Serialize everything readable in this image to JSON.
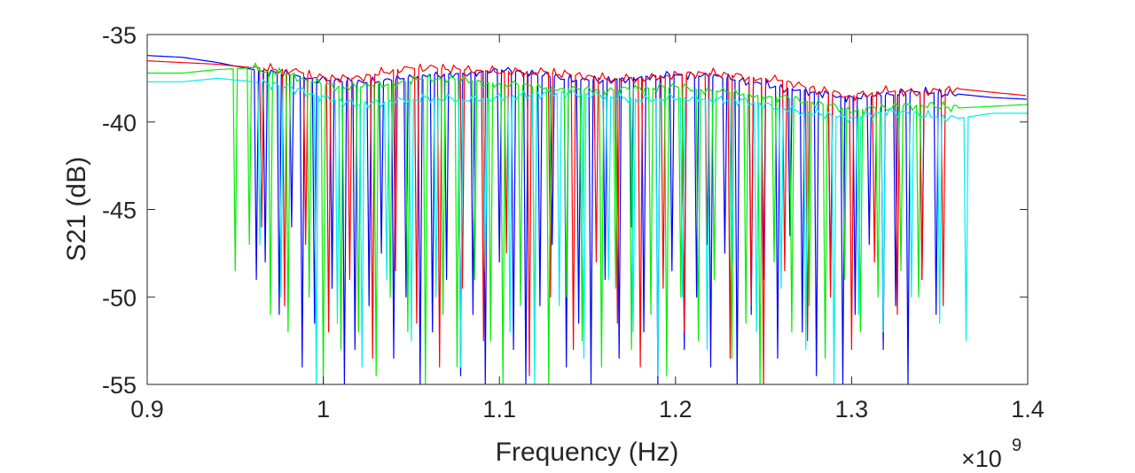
{
  "chart_data": {
    "type": "line",
    "title": "",
    "xlabel": "Frequency (Hz)",
    "ylabel": "S21 (dB)",
    "x_exponent_label": "×10",
    "x_exponent_power": "9",
    "xlim": [
      0.9,
      1.4
    ],
    "ylim": [
      -55,
      -35
    ],
    "x_ticks": [
      0.9,
      1.0,
      1.1,
      1.2,
      1.3,
      1.4
    ],
    "x_tick_labels": [
      "0.9",
      "1",
      "1.1",
      "1.2",
      "1.3",
      "1.4"
    ],
    "y_ticks": [
      -35,
      -40,
      -45,
      -50,
      -55
    ],
    "y_tick_labels": [
      "-35",
      "-40",
      "-45",
      "-50",
      "-55"
    ],
    "grid": false,
    "legend": "none",
    "series": [
      {
        "color": "#0000ff",
        "baseline": [
          [
            0.9,
            -36.2
          ],
          [
            0.92,
            -36.3
          ],
          [
            0.94,
            -36.6
          ],
          [
            0.96,
            -37.0
          ],
          [
            0.98,
            -37.3
          ],
          [
            1.0,
            -37.6
          ],
          [
            1.02,
            -37.8
          ],
          [
            1.04,
            -37.6
          ],
          [
            1.06,
            -37.3
          ],
          [
            1.08,
            -37.2
          ],
          [
            1.1,
            -37.0
          ],
          [
            1.12,
            -37.3
          ],
          [
            1.14,
            -37.6
          ],
          [
            1.16,
            -37.6
          ],
          [
            1.18,
            -37.4
          ],
          [
            1.2,
            -37.3
          ],
          [
            1.22,
            -37.4
          ],
          [
            1.24,
            -37.7
          ],
          [
            1.26,
            -38.0
          ],
          [
            1.28,
            -38.3
          ],
          [
            1.3,
            -38.6
          ],
          [
            1.32,
            -38.5
          ],
          [
            1.34,
            -38.3
          ],
          [
            1.36,
            -38.4
          ],
          [
            1.38,
            -38.6
          ],
          [
            1.4,
            -38.7
          ]
        ],
        "dips": [
          [
            0.962,
            -49.0
          ],
          [
            0.967,
            -48.0
          ],
          [
            0.975,
            -51.0
          ],
          [
            0.982,
            -46.0
          ],
          [
            0.988,
            -54.0
          ],
          [
            0.995,
            -51.5
          ],
          [
            1.005,
            -49.5
          ],
          [
            1.012,
            -55.0
          ],
          [
            1.018,
            -53.0
          ],
          [
            1.026,
            -50.5
          ],
          [
            1.033,
            -47.5
          ],
          [
            1.04,
            -53.5
          ],
          [
            1.047,
            -50.0
          ],
          [
            1.055,
            -55.0
          ],
          [
            1.062,
            -52.0
          ],
          [
            1.07,
            -49.0
          ],
          [
            1.078,
            -54.5
          ],
          [
            1.085,
            -51.0
          ],
          [
            1.092,
            -55.0
          ],
          [
            1.1,
            -48.0
          ],
          [
            1.108,
            -53.0
          ],
          [
            1.115,
            -55.0
          ],
          [
            1.123,
            -50.5
          ],
          [
            1.13,
            -47.0
          ],
          [
            1.138,
            -54.0
          ],
          [
            1.145,
            -51.5
          ],
          [
            1.152,
            -55.0
          ],
          [
            1.16,
            -49.0
          ],
          [
            1.168,
            -53.5
          ],
          [
            1.175,
            -46.0
          ],
          [
            1.182,
            -52.0
          ],
          [
            1.19,
            -55.0
          ],
          [
            1.198,
            -48.5
          ],
          [
            1.205,
            -53.0
          ],
          [
            1.212,
            -50.0
          ],
          [
            1.22,
            -54.0
          ],
          [
            1.228,
            -47.5
          ],
          [
            1.235,
            -55.0
          ],
          [
            1.243,
            -51.0
          ],
          [
            1.25,
            -49.0
          ],
          [
            1.258,
            -53.5
          ],
          [
            1.265,
            -46.5
          ],
          [
            1.272,
            -52.0
          ],
          [
            1.28,
            -54.5
          ],
          [
            1.288,
            -49.5
          ],
          [
            1.295,
            -55.0
          ],
          [
            1.302,
            -51.0
          ],
          [
            1.31,
            -47.0
          ],
          [
            1.318,
            -53.0
          ],
          [
            1.325,
            -50.5
          ],
          [
            1.332,
            -55.0
          ],
          [
            1.34,
            -49.0
          ],
          [
            1.348,
            -51.0
          ]
        ]
      },
      {
        "color": "#ff0000",
        "baseline": [
          [
            0.9,
            -36.5
          ],
          [
            0.92,
            -36.6
          ],
          [
            0.94,
            -36.7
          ],
          [
            0.96,
            -36.9
          ],
          [
            0.98,
            -37.0
          ],
          [
            1.0,
            -37.5
          ],
          [
            1.02,
            -37.5
          ],
          [
            1.04,
            -37.0
          ],
          [
            1.06,
            -36.9
          ],
          [
            1.08,
            -37.0
          ],
          [
            1.1,
            -37.1
          ],
          [
            1.12,
            -37.1
          ],
          [
            1.14,
            -37.3
          ],
          [
            1.16,
            -37.5
          ],
          [
            1.18,
            -37.5
          ],
          [
            1.2,
            -37.3
          ],
          [
            1.22,
            -37.2
          ],
          [
            1.24,
            -37.4
          ],
          [
            1.26,
            -37.6
          ],
          [
            1.28,
            -38.2
          ],
          [
            1.3,
            -38.5
          ],
          [
            1.32,
            -38.2
          ],
          [
            1.34,
            -38.3
          ],
          [
            1.36,
            -38.1
          ],
          [
            1.38,
            -38.3
          ],
          [
            1.4,
            -38.5
          ]
        ],
        "dips": [
          [
            0.965,
            -46.0
          ],
          [
            0.978,
            -50.5
          ],
          [
            0.99,
            -47.0
          ],
          [
            1.003,
            -52.0
          ],
          [
            1.015,
            -49.0
          ],
          [
            1.028,
            -53.5
          ],
          [
            1.041,
            -48.5
          ],
          [
            1.053,
            -51.5
          ],
          [
            1.066,
            -54.0
          ],
          [
            1.079,
            -49.5
          ],
          [
            1.091,
            -52.5
          ],
          [
            1.104,
            -47.5
          ],
          [
            1.117,
            -54.5
          ],
          [
            1.129,
            -50.0
          ],
          [
            1.142,
            -53.0
          ],
          [
            1.155,
            -48.0
          ],
          [
            1.167,
            -51.5
          ],
          [
            1.18,
            -54.0
          ],
          [
            1.193,
            -49.5
          ],
          [
            1.205,
            -52.0
          ],
          [
            1.218,
            -47.0
          ],
          [
            1.231,
            -53.5
          ],
          [
            1.243,
            -50.5
          ],
          [
            1.25,
            -55.0
          ],
          [
            1.262,
            -48.5
          ],
          [
            1.275,
            -52.5
          ],
          [
            1.288,
            -50.0
          ],
          [
            1.3,
            -53.0
          ],
          [
            1.313,
            -48.0
          ],
          [
            1.326,
            -51.0
          ],
          [
            1.34,
            -49.0
          ],
          [
            1.352,
            -50.5
          ]
        ]
      },
      {
        "color": "#00ee00",
        "baseline": [
          [
            0.9,
            -37.2
          ],
          [
            0.92,
            -37.2
          ],
          [
            0.94,
            -37.0
          ],
          [
            0.96,
            -36.9
          ],
          [
            0.98,
            -37.3
          ],
          [
            1.0,
            -37.9
          ],
          [
            1.02,
            -38.0
          ],
          [
            1.04,
            -37.8
          ],
          [
            1.06,
            -37.5
          ],
          [
            1.08,
            -37.6
          ],
          [
            1.1,
            -37.8
          ],
          [
            1.12,
            -38.0
          ],
          [
            1.14,
            -38.1
          ],
          [
            1.16,
            -38.2
          ],
          [
            1.18,
            -38.1
          ],
          [
            1.2,
            -38.0
          ],
          [
            1.22,
            -38.2
          ],
          [
            1.24,
            -38.4
          ],
          [
            1.26,
            -38.6
          ],
          [
            1.28,
            -38.9
          ],
          [
            1.3,
            -39.3
          ],
          [
            1.32,
            -39.2
          ],
          [
            1.34,
            -39.0
          ],
          [
            1.36,
            -39.2
          ],
          [
            1.38,
            -39.1
          ],
          [
            1.4,
            -39.0
          ]
        ],
        "dips": [
          [
            0.95,
            -48.5
          ],
          [
            0.958,
            -47.0
          ],
          [
            0.97,
            -51.0
          ],
          [
            0.98,
            -52.0
          ],
          [
            0.992,
            -50.0
          ],
          [
            1.0,
            -55.0
          ],
          [
            1.01,
            -53.0
          ],
          [
            1.02,
            -52.0
          ],
          [
            1.03,
            -54.5
          ],
          [
            1.038,
            -50.0
          ],
          [
            1.048,
            -52.0
          ],
          [
            1.058,
            -55.0
          ],
          [
            1.068,
            -51.0
          ],
          [
            1.076,
            -54.0
          ],
          [
            1.086,
            -49.0
          ],
          [
            1.095,
            -52.5
          ],
          [
            1.102,
            -55.0
          ],
          [
            1.112,
            -50.5
          ],
          [
            1.12,
            -53.0
          ],
          [
            1.128,
            -55.0
          ],
          [
            1.138,
            -50.0
          ],
          [
            1.147,
            -52.5
          ],
          [
            1.158,
            -54.0
          ],
          [
            1.166,
            -49.5
          ],
          [
            1.175,
            -53.0
          ],
          [
            1.186,
            -51.0
          ],
          [
            1.195,
            -54.5
          ],
          [
            1.203,
            -50.0
          ],
          [
            1.213,
            -52.5
          ],
          [
            1.222,
            -49.0
          ],
          [
            1.232,
            -53.5
          ],
          [
            1.24,
            -51.5
          ],
          [
            1.248,
            -55.0
          ],
          [
            1.256,
            -48.0
          ],
          [
            1.266,
            -52.0
          ],
          [
            1.276,
            -50.5
          ],
          [
            1.285,
            -53.5
          ],
          [
            1.296,
            -49.0
          ],
          [
            1.305,
            -52.0
          ],
          [
            1.315,
            -50.0
          ],
          [
            1.328,
            -48.5
          ],
          [
            1.338,
            -50.0
          ]
        ]
      },
      {
        "color": "#00eeee",
        "baseline": [
          [
            0.9,
            -37.7
          ],
          [
            0.92,
            -37.7
          ],
          [
            0.94,
            -37.5
          ],
          [
            0.96,
            -37.7
          ],
          [
            0.98,
            -38.0
          ],
          [
            1.0,
            -38.6
          ],
          [
            1.02,
            -39.0
          ],
          [
            1.04,
            -38.8
          ],
          [
            1.06,
            -38.6
          ],
          [
            1.08,
            -38.7
          ],
          [
            1.1,
            -38.6
          ],
          [
            1.12,
            -38.4
          ],
          [
            1.14,
            -38.3
          ],
          [
            1.16,
            -38.5
          ],
          [
            1.18,
            -38.7
          ],
          [
            1.2,
            -38.6
          ],
          [
            1.22,
            -38.7
          ],
          [
            1.24,
            -38.8
          ],
          [
            1.26,
            -39.2
          ],
          [
            1.28,
            -39.5
          ],
          [
            1.3,
            -39.8
          ],
          [
            1.32,
            -39.4
          ],
          [
            1.34,
            -39.6
          ],
          [
            1.36,
            -39.8
          ],
          [
            1.38,
            -39.5
          ],
          [
            1.4,
            -39.5
          ]
        ],
        "dips": [
          [
            0.964,
            -47.0
          ],
          [
            0.976,
            -50.0
          ],
          [
            0.996,
            -55.0
          ],
          [
            1.008,
            -51.5
          ],
          [
            1.022,
            -54.0
          ],
          [
            1.036,
            -49.0
          ],
          [
            1.05,
            -52.5
          ],
          [
            1.064,
            -50.0
          ],
          [
            1.078,
            -54.0
          ],
          [
            1.092,
            -48.5
          ],
          [
            1.106,
            -52.0
          ],
          [
            1.12,
            -55.0
          ],
          [
            1.134,
            -50.5
          ],
          [
            1.148,
            -53.5
          ],
          [
            1.162,
            -49.0
          ],
          [
            1.176,
            -52.0
          ],
          [
            1.19,
            -54.5
          ],
          [
            1.204,
            -50.0
          ],
          [
            1.218,
            -53.0
          ],
          [
            1.232,
            -48.0
          ],
          [
            1.246,
            -52.0
          ],
          [
            1.26,
            -49.5
          ],
          [
            1.274,
            -53.0
          ],
          [
            1.29,
            -55.0
          ],
          [
            1.304,
            -51.0
          ],
          [
            1.318,
            -52.0
          ],
          [
            1.334,
            -50.0
          ],
          [
            1.35,
            -51.5
          ],
          [
            1.365,
            -52.5
          ]
        ]
      }
    ]
  }
}
